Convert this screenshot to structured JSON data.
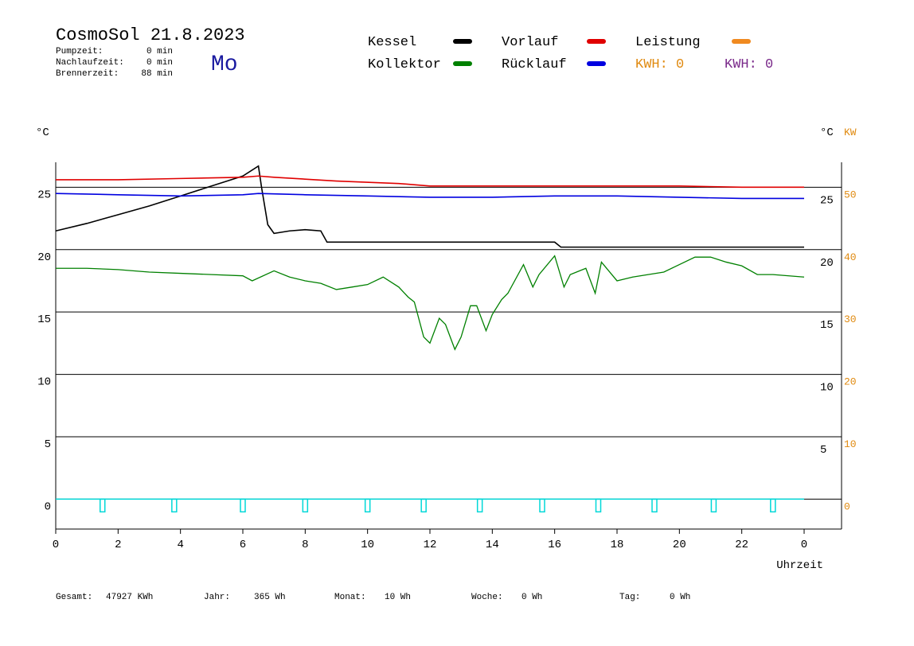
{
  "chart_data": {
    "type": "line",
    "title": "CosmoSol 21.8.2023",
    "day": "Mo",
    "stats": [
      {
        "label": "Pumpzeit:",
        "value": "0 min"
      },
      {
        "label": "Nachlaufzeit:",
        "value": "0 min"
      },
      {
        "label": "Brennerzeit:",
        "value": "88 min"
      }
    ],
    "y_label": "°C",
    "y2_label_left": "°C",
    "y2_label": "KW",
    "x_label": "Uhrzeit",
    "legend_extra": [
      {
        "text": "KWH: 0",
        "color": "#e08a10"
      },
      {
        "text": "KWH: 0",
        "color": "#7a2a8a"
      }
    ],
    "xlim": [
      0,
      25.2
    ],
    "xticks": [
      0,
      2,
      4,
      6,
      8,
      10,
      12,
      14,
      16,
      18,
      20,
      22,
      {
        "value": 24,
        "label": "0"
      }
    ],
    "ylim": [
      -2.4,
      27
    ],
    "yticks": [
      0,
      5,
      10,
      15,
      20,
      25
    ],
    "yticks_right": [
      5,
      10,
      15,
      20,
      25
    ],
    "y2lim": [
      -4.8,
      54
    ],
    "y2ticks": [
      0,
      10,
      20,
      30,
      40,
      50
    ],
    "grid": true,
    "series": [
      {
        "name": "Kessel",
        "color": "#000000",
        "x": [
          0,
          1,
          2,
          3,
          4,
          5,
          6,
          6.5,
          6.6,
          6.8,
          7,
          7.5,
          8,
          8.5,
          8.7,
          10,
          12,
          14,
          16,
          16.2,
          18,
          20,
          22,
          24
        ],
        "values": [
          21.5,
          22.1,
          22.8,
          23.5,
          24.3,
          25.1,
          25.9,
          26.7,
          25.0,
          22.0,
          21.3,
          21.5,
          21.6,
          21.5,
          20.6,
          20.6,
          20.6,
          20.6,
          20.6,
          20.2,
          20.2,
          20.2,
          20.2,
          20.2
        ]
      },
      {
        "name": "Kollektor",
        "color": "#008000",
        "x": [
          0,
          1,
          2,
          3,
          4,
          5,
          6,
          6.3,
          7,
          7.5,
          8,
          8.5,
          9,
          9.5,
          10,
          10.5,
          11,
          11.3,
          11.5,
          11.8,
          12,
          12.3,
          12.5,
          12.8,
          13,
          13.3,
          13.5,
          13.8,
          14,
          14.3,
          14.5,
          15,
          15.3,
          15.5,
          16,
          16.3,
          16.5,
          17,
          17.3,
          17.5,
          18,
          18.5,
          19,
          19.5,
          20,
          20.5,
          21,
          21.5,
          22,
          22.5,
          23,
          24
        ],
        "values": [
          18.5,
          18.5,
          18.4,
          18.2,
          18.1,
          18.0,
          17.9,
          17.5,
          18.3,
          17.8,
          17.5,
          17.3,
          16.8,
          17.0,
          17.2,
          17.8,
          17.0,
          16.2,
          15.8,
          13.0,
          12.5,
          14.5,
          14.0,
          12.0,
          13.0,
          15.5,
          15.5,
          13.5,
          14.8,
          16.0,
          16.5,
          18.8,
          17.0,
          18.0,
          19.5,
          17.0,
          18.0,
          18.5,
          16.5,
          19.0,
          17.5,
          17.8,
          18.0,
          18.2,
          18.8,
          19.4,
          19.4,
          19.0,
          18.7,
          18.0,
          18.0,
          17.8
        ]
      },
      {
        "name": "Vorlauf",
        "color": "#e00000",
        "x": [
          0,
          2,
          4,
          6,
          6.5,
          7,
          9,
          11,
          12,
          14,
          16,
          18,
          20,
          22,
          24
        ],
        "values": [
          25.6,
          25.6,
          25.7,
          25.8,
          25.9,
          25.8,
          25.5,
          25.3,
          25.1,
          25.1,
          25.1,
          25.1,
          25.1,
          25.0,
          25.0
        ]
      },
      {
        "name": "Rücklauf",
        "color": "#0000e0",
        "x": [
          0,
          2,
          4,
          6,
          6.5,
          8,
          10,
          12,
          14,
          16,
          18,
          20,
          22,
          24
        ],
        "values": [
          24.5,
          24.4,
          24.3,
          24.4,
          24.5,
          24.4,
          24.3,
          24.2,
          24.2,
          24.3,
          24.3,
          24.2,
          24.1,
          24.1
        ]
      },
      {
        "name": "Leistung",
        "color": "#f08a20",
        "axis": "y2",
        "x": [],
        "values": []
      }
    ],
    "pump_line": {
      "color": "#00d8d8",
      "x": [
        0,
        24
      ],
      "values": [
        0,
        0
      ]
    },
    "pump_markers": [
      1.5,
      3.8,
      6.0,
      8.0,
      10.0,
      11.8,
      13.6,
      15.6,
      17.4,
      19.2,
      21.1,
      23.0
    ],
    "footer": [
      {
        "label": "Gesamt:",
        "value": "47927 KWh"
      },
      {
        "label": "Jahr:",
        "value": "365 Wh"
      },
      {
        "label": "Monat:",
        "value": "10 Wh"
      },
      {
        "label": "Woche:",
        "value": "0 Wh"
      },
      {
        "label": "Tag:",
        "value": "0 Wh"
      }
    ]
  }
}
